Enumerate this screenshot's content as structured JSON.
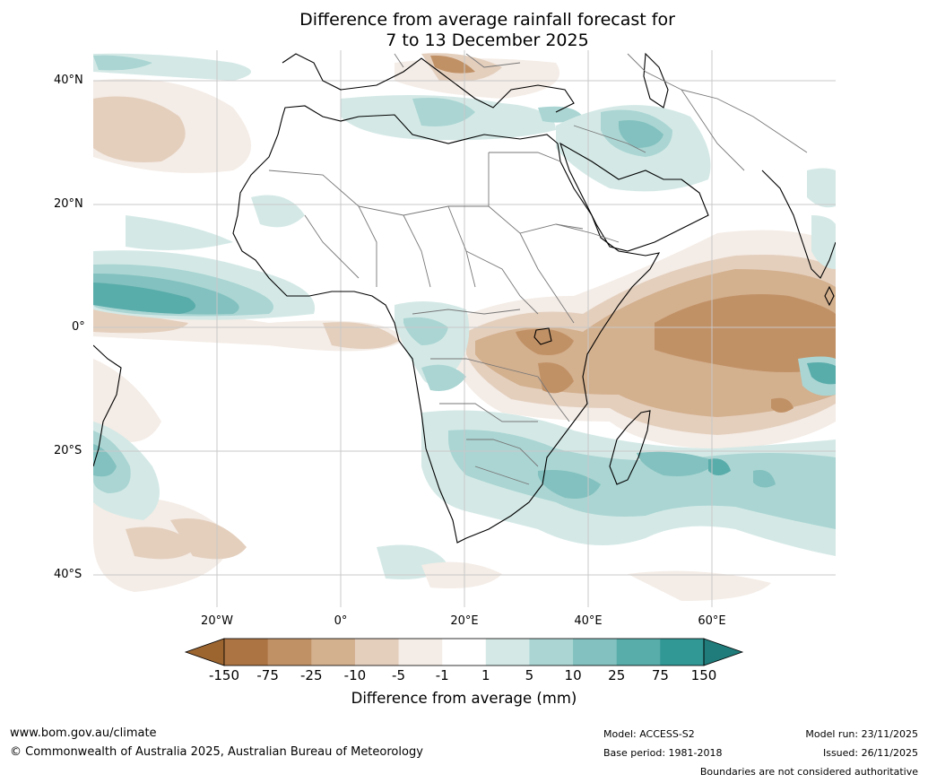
{
  "title": {
    "line1": "Difference from average rainfall forecast for",
    "line2": "7 to 13 December 2025"
  },
  "map": {
    "lat_labels": [
      "40°N",
      "20°N",
      "0°",
      "20°S",
      "40°S"
    ],
    "lon_labels": [
      "20°W",
      "0°",
      "20°E",
      "40°E",
      "60°E"
    ]
  },
  "colorbar": {
    "title": "Difference from average (mm)",
    "ticks": [
      "-150",
      "-75",
      "-25",
      "-10",
      "-5",
      "-1",
      "1",
      "5",
      "10",
      "25",
      "75",
      "150"
    ],
    "colors": {
      "under": "#9c6530",
      "bins": [
        "#ad7443",
        "#c19166",
        "#d3b08e",
        "#e4cfbd",
        "#f4ece6",
        "#ffffff",
        "#d4e9e6",
        "#aad5d3",
        "#82c1bf",
        "#58acaa",
        "#319896"
      ],
      "over": "#1f7c7a"
    }
  },
  "footer": {
    "website": "www.bom.gov.au/climate",
    "copyright": "© Commonwealth of Australia 2025, Australian Bureau of Meteorology",
    "model": "Model: ACCESS-S2",
    "base_period": "Base period: 1981-2018",
    "model_run": "Model run: 23/11/2025",
    "issued": "Issued: 26/11/2025",
    "disclaimer": "Boundaries are not considered authoritative"
  }
}
